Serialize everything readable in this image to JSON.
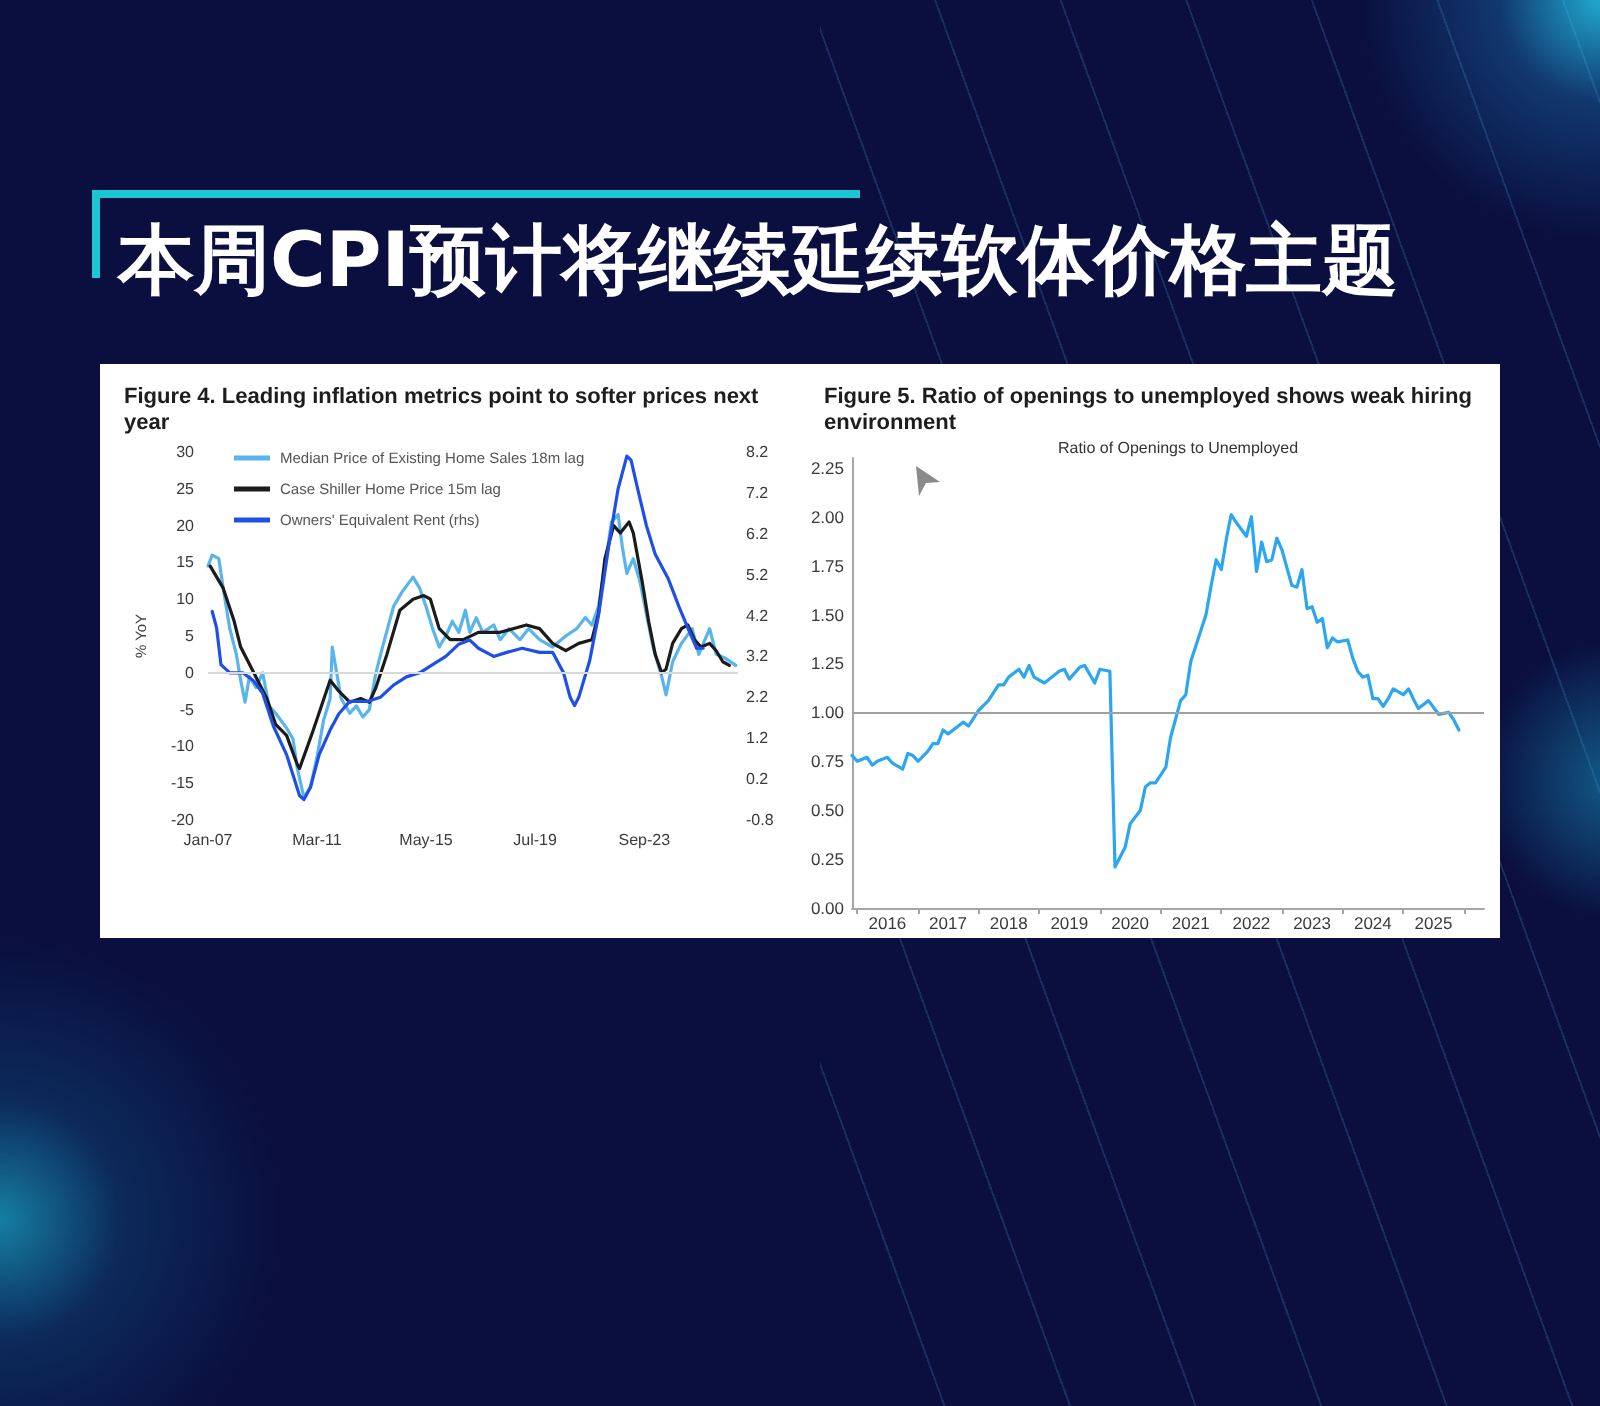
{
  "chart_data": [
    {
      "type": "other",
      "title": "本周CPI预计将继续延续软体价格主题"
    },
    {
      "type": "line",
      "title": "Figure 4. Leading inflation metrics point to softer prices next year",
      "ylabel": "% YoY",
      "legend": "top left",
      "marker": "none",
      "xlim": [
        "2007-01",
        "2027-04"
      ],
      "xticks": [
        {
          "value": "2007-01",
          "label": "Jan-07"
        },
        {
          "value": "2011-03",
          "label": "Mar-11"
        },
        {
          "value": "2015-05",
          "label": "May-15"
        },
        {
          "value": "2019-07",
          "label": "Jul-19"
        },
        {
          "value": "2023-09",
          "label": "Sep-23"
        }
      ],
      "ylim": [
        -20,
        30
      ],
      "yticks": [
        -20,
        -15,
        -10,
        -5,
        0,
        5,
        10,
        15,
        20,
        25,
        30
      ],
      "y2lim": [
        -0.8,
        8.2
      ],
      "y2ticks": [
        -0.8,
        0.2,
        1.2,
        2.2,
        3.2,
        4.2,
        5.2,
        6.2,
        7.2,
        8.2
      ],
      "ref_lines": [
        {
          "axis": "y",
          "value": 0,
          "color": "#d9d9d9"
        }
      ],
      "series": [
        {
          "name": "Median Price of Existing Home Sales 18m lag",
          "color": "#5ab4ec",
          "x": [
            "2007-01",
            "2007-03",
            "2007-06",
            "2007-08",
            "2007-11",
            "2008-02",
            "2008-04",
            "2008-06",
            "2008-08",
            "2008-11",
            "2009-02",
            "2009-05",
            "2009-08",
            "2010-01",
            "2010-04",
            "2010-06",
            "2010-09",
            "2010-12",
            "2011-03",
            "2011-06",
            "2011-09",
            "2011-10",
            "2011-12",
            "2012-02",
            "2012-06",
            "2012-09",
            "2012-12",
            "2013-03",
            "2013-06",
            "2013-09",
            "2014-02",
            "2014-06",
            "2014-11",
            "2015-02",
            "2015-05",
            "2015-08",
            "2015-11",
            "2016-02",
            "2016-05",
            "2016-08",
            "2016-11",
            "2017-01",
            "2017-04",
            "2017-07",
            "2017-12",
            "2018-03",
            "2018-07",
            "2018-12",
            "2019-04",
            "2019-09",
            "2020-03",
            "2020-09",
            "2021-02",
            "2021-06",
            "2021-09",
            "2021-12",
            "2022-03",
            "2022-06",
            "2022-09",
            "2022-11",
            "2023-01",
            "2023-04",
            "2023-07",
            "2023-10",
            "2024-01",
            "2024-05",
            "2024-07",
            "2024-10",
            "2025-02",
            "2025-07",
            "2025-10",
            "2026-03",
            "2026-06",
            "2026-10",
            "2027-03"
          ],
          "values": [
            14.5,
            16,
            15.5,
            11.5,
            6,
            2.5,
            -1,
            -4,
            -0.5,
            -2,
            0,
            -4.5,
            -5.5,
            -7.5,
            -9,
            -13,
            -17,
            -15.5,
            -11.5,
            -6.5,
            -3.5,
            3.5,
            0,
            -3.5,
            -5.5,
            -4.5,
            -6,
            -5,
            0,
            3.5,
            9,
            11,
            13,
            11.5,
            9,
            6,
            3.5,
            5,
            7,
            5.5,
            8.5,
            5.5,
            7.5,
            5.5,
            6.5,
            4.5,
            6,
            4.5,
            6,
            4.5,
            3.5,
            5,
            6,
            7.5,
            6.5,
            9,
            14.5,
            20.5,
            21.5,
            17,
            13.5,
            15.5,
            12.5,
            8,
            3.5,
            -0.5,
            -3,
            1.5,
            4,
            6,
            2.5,
            6,
            2.5,
            2,
            1
          ]
        },
        {
          "name": "Case Shiller Home Price 15m lag",
          "color": "#1b1b1b",
          "x": [
            "2007-02",
            "2007-08",
            "2008-01",
            "2008-04",
            "2008-10",
            "2009-04",
            "2009-08",
            "2010-01",
            "2010-06",
            "2010-07",
            "2011-01",
            "2011-09",
            "2012-01",
            "2012-06",
            "2012-11",
            "2013-03",
            "2013-06",
            "2013-11",
            "2014-05",
            "2014-11",
            "2015-04",
            "2015-07",
            "2015-11",
            "2016-04",
            "2016-10",
            "2017-05",
            "2018-03",
            "2019-03",
            "2019-09",
            "2020-03",
            "2020-09",
            "2021-03",
            "2021-09",
            "2021-12",
            "2022-03",
            "2022-07",
            "2022-10",
            "2023-02",
            "2023-04",
            "2023-08",
            "2023-11",
            "2024-02",
            "2024-05",
            "2024-07",
            "2024-10",
            "2025-02",
            "2025-05",
            "2025-08",
            "2025-11",
            "2026-03",
            "2026-06",
            "2026-09",
            "2026-12"
          ],
          "values": [
            14.5,
            11.5,
            7,
            3.5,
            0,
            -3.5,
            -7,
            -8.5,
            -12.5,
            -13,
            -8,
            -1,
            -2.5,
            -4,
            -3.5,
            -4,
            -2,
            2.5,
            8.5,
            10,
            10.5,
            10,
            6,
            4.5,
            4.5,
            5.5,
            5.5,
            6.5,
            6,
            4,
            3,
            4,
            4.5,
            8,
            15.5,
            20,
            19,
            20.5,
            19,
            12.5,
            7,
            2.5,
            0,
            0.5,
            4,
            6,
            6.5,
            4.5,
            3.5,
            4,
            3,
            1.5,
            1
          ]
        },
        {
          "name": "Owners' Equivalent Rent (rhs)",
          "color": "#1f4fe6",
          "axis": "y2",
          "x": [
            "2007-03",
            "2007-05",
            "2007-07",
            "2007-11",
            "2008-05",
            "2008-10",
            "2009-02",
            "2009-07",
            "2010-01",
            "2010-07",
            "2010-09",
            "2010-12",
            "2011-04",
            "2011-09",
            "2012-01",
            "2012-06",
            "2013-02",
            "2013-08",
            "2014-02",
            "2014-08",
            "2015-02",
            "2015-08",
            "2016-02",
            "2016-08",
            "2017-01",
            "2017-05",
            "2017-12",
            "2018-06",
            "2019-01",
            "2019-09",
            "2020-03",
            "2020-08",
            "2020-11",
            "2021-01",
            "2021-03",
            "2021-08",
            "2021-12",
            "2022-05",
            "2022-09",
            "2023-01",
            "2023-03",
            "2023-06",
            "2023-10",
            "2024-02",
            "2024-08",
            "2025-01",
            "2025-05",
            "2025-09",
            "2025-12"
          ],
          "values": [
            4.3,
            3.9,
            3.0,
            2.8,
            2.8,
            2.6,
            2.3,
            1.5,
            0.8,
            -0.2,
            -0.3,
            0.0,
            0.8,
            1.4,
            1.8,
            2.1,
            2.1,
            2.2,
            2.5,
            2.7,
            2.8,
            3.0,
            3.2,
            3.5,
            3.6,
            3.4,
            3.2,
            3.3,
            3.4,
            3.3,
            3.3,
            2.8,
            2.2,
            2.0,
            2.2,
            3.1,
            4.2,
            6.0,
            7.3,
            8.1,
            8.0,
            7.3,
            6.4,
            5.7,
            5.1,
            4.4,
            3.9,
            3.4,
            3.4
          ]
        }
      ]
    },
    {
      "type": "line",
      "title": "Figure 5. Ratio of openings to unemployed shows weak hiring environment",
      "subtitle": "Ratio of Openings to Unemployed",
      "marker": "none",
      "xlim": [
        "2015-12",
        "2026-05"
      ],
      "xticks": [
        {
          "value": "2016-01",
          "label": null
        },
        {
          "value": "2016-07",
          "label": "2016"
        },
        {
          "value": "2017-01",
          "label": null
        },
        {
          "value": "2017-07",
          "label": "2017"
        },
        {
          "value": "2018-01",
          "label": null
        },
        {
          "value": "2018-07",
          "label": "2018"
        },
        {
          "value": "2019-01",
          "label": null
        },
        {
          "value": "2019-07",
          "label": "2019"
        },
        {
          "value": "2020-01",
          "label": null
        },
        {
          "value": "2020-07",
          "label": "2020"
        },
        {
          "value": "2021-01",
          "label": null
        },
        {
          "value": "2021-07",
          "label": "2021"
        },
        {
          "value": "2022-01",
          "label": null
        },
        {
          "value": "2022-07",
          "label": "2022"
        },
        {
          "value": "2023-01",
          "label": null
        },
        {
          "value": "2023-07",
          "label": "2023"
        },
        {
          "value": "2024-01",
          "label": null
        },
        {
          "value": "2024-07",
          "label": "2024"
        },
        {
          "value": "2025-01",
          "label": null
        },
        {
          "value": "2025-07",
          "label": "2025"
        },
        {
          "value": "2026-01",
          "label": null
        }
      ],
      "ylim": [
        0,
        2.3
      ],
      "yticks": [
        {
          "value": 0,
          "label": "0.00"
        },
        {
          "value": 0.25,
          "label": "0.25"
        },
        {
          "value": 0.5,
          "label": "0.50"
        },
        {
          "value": 0.75,
          "label": "0.75"
        },
        {
          "value": 1,
          "label": "1.00"
        },
        {
          "value": 1.25,
          "label": "1.25"
        },
        {
          "value": 1.5,
          "label": "1.50"
        },
        {
          "value": 1.75,
          "label": "1.75"
        },
        {
          "value": 2,
          "label": "2.00"
        },
        {
          "value": 2.25,
          "label": "2.25"
        }
      ],
      "ref_lines": [
        {
          "axis": "y",
          "value": 1,
          "color": "#a0a0a0"
        }
      ],
      "series": [
        {
          "color": "#2ba6ef",
          "x": [
            "2015-12",
            "2016-01",
            "2016-03",
            "2016-04",
            "2016-05",
            "2016-07",
            "2016-08",
            "2016-10",
            "2016-11",
            "2016-12",
            "2017-01",
            "2017-03",
            "2017-04",
            "2017-05",
            "2017-06",
            "2017-07",
            "2017-08",
            "2017-10",
            "2017-11",
            "2018-01",
            "2018-03",
            "2018-05",
            "2018-06",
            "2018-07",
            "2018-09",
            "2018-10",
            "2018-11",
            "2018-12",
            "2019-02",
            "2019-05",
            "2019-06",
            "2019-07",
            "2019-09",
            "2019-10",
            "2019-12",
            "2020-01",
            "2020-03",
            "2020-04",
            "2020-06",
            "2020-07",
            "2020-09",
            "2020-10",
            "2020-11",
            "2020-12",
            "2021-02",
            "2021-03",
            "2021-05",
            "2021-06",
            "2021-07",
            "2021-08",
            "2021-10",
            "2021-11",
            "2021-12",
            "2022-01",
            "2022-02",
            "2022-03",
            "2022-04",
            "2022-06",
            "2022-07",
            "2022-08",
            "2022-09",
            "2022-10",
            "2022-11",
            "2022-12",
            "2023-01",
            "2023-03",
            "2023-04",
            "2023-05",
            "2023-06",
            "2023-07",
            "2023-08",
            "2023-09",
            "2023-10",
            "2023-11",
            "2023-12",
            "2024-02",
            "2024-03",
            "2024-04",
            "2024-05",
            "2024-06",
            "2024-07",
            "2024-08",
            "2024-09",
            "2024-10",
            "2024-11",
            "2025-01",
            "2025-02",
            "2025-03",
            "2025-04",
            "2025-06",
            "2025-08",
            "2025-10",
            "2025-11",
            "2025-12"
          ],
          "values": [
            0.78,
            0.75,
            0.77,
            0.73,
            0.75,
            0.77,
            0.74,
            0.71,
            0.79,
            0.78,
            0.75,
            0.8,
            0.84,
            0.84,
            0.91,
            0.89,
            0.91,
            0.95,
            0.93,
            1.01,
            1.06,
            1.14,
            1.14,
            1.18,
            1.22,
            1.18,
            1.24,
            1.18,
            1.15,
            1.21,
            1.22,
            1.17,
            1.23,
            1.24,
            1.15,
            1.22,
            1.21,
            0.21,
            0.31,
            0.43,
            0.5,
            0.62,
            0.64,
            0.64,
            0.72,
            0.87,
            1.06,
            1.09,
            1.26,
            1.34,
            1.5,
            1.65,
            1.78,
            1.73,
            1.89,
            2.01,
            1.97,
            1.9,
            2.0,
            1.72,
            1.87,
            1.77,
            1.78,
            1.89,
            1.83,
            1.65,
            1.64,
            1.73,
            1.53,
            1.54,
            1.46,
            1.48,
            1.33,
            1.38,
            1.36,
            1.37,
            1.28,
            1.21,
            1.18,
            1.19,
            1.07,
            1.07,
            1.03,
            1.07,
            1.12,
            1.09,
            1.12,
            1.07,
            1.02,
            1.06,
            0.99,
            1.0,
            0.96,
            0.91
          ]
        }
      ]
    }
  ]
}
